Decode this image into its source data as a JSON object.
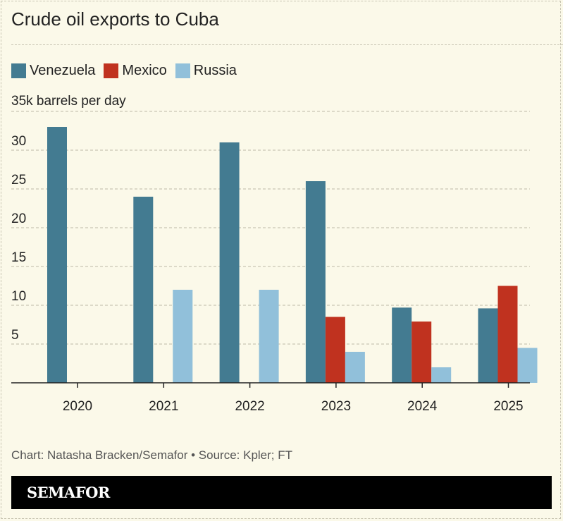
{
  "chart_data": {
    "type": "bar",
    "title": "Crude oil exports to Cuba",
    "ylabel": "35k barrels per day",
    "categories": [
      "2020",
      "2021",
      "2022",
      "2023",
      "2024",
      "2025"
    ],
    "series": [
      {
        "name": "Venezuela",
        "color": "#437b91",
        "values": [
          33,
          24,
          31,
          26,
          9.7,
          9.6
        ]
      },
      {
        "name": "Mexico",
        "color": "#c0321f",
        "values": [
          0,
          0,
          0,
          8.5,
          7.9,
          12.5
        ]
      },
      {
        "name": "Russia",
        "color": "#91c0da",
        "values": [
          0,
          12,
          12,
          4,
          2,
          4.5
        ]
      }
    ],
    "yticks": [
      "5",
      "10",
      "15",
      "20",
      "25",
      "30"
    ],
    "ylim": [
      0,
      35
    ],
    "grid": true,
    "legend": "top-left"
  },
  "credit": "Chart: Natasha Bracken/Semafor • Source: Kpler; FT",
  "brand": "SEMAFOR"
}
